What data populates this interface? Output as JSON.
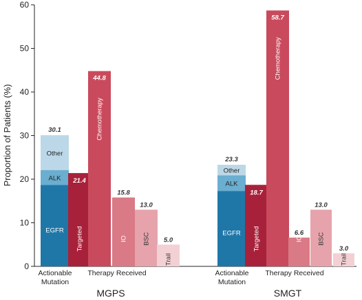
{
  "chart_data": {
    "type": "bar",
    "ylabel": "Proportion of Patients (%)",
    "ylim": [
      0,
      60
    ],
    "yticks": [
      0,
      10,
      20,
      30,
      40,
      50,
      60
    ],
    "grid": false,
    "groups": [
      {
        "name": "MGPS",
        "actionable": {
          "label_line1": "Actionable",
          "label_line2": "Mutation",
          "total": 30.1,
          "total_label": "30.1",
          "segments": [
            {
              "name": "EGFR",
              "value": 18.7,
              "color": "#1f77a8"
            },
            {
              "name": "ALK",
              "value": 3.4,
              "color": "#6aaed0"
            },
            {
              "name": "Other",
              "value": 8.0,
              "color": "#bcd8e8"
            }
          ]
        },
        "therapy_label": "Therapy Received",
        "therapy": [
          {
            "name": "Targeted",
            "value": 21.4,
            "label": "21.4",
            "color": "#a8213a"
          },
          {
            "name": "Chemotherapy",
            "value": 44.8,
            "label": "44.8",
            "color": "#c94a5c"
          },
          {
            "name": "IO",
            "value": 15.8,
            "label": "15.8",
            "color": "#d97a86"
          },
          {
            "name": "BSC",
            "value": 13.0,
            "label": "13.0",
            "color": "#e6a3ab"
          },
          {
            "name": "Trail",
            "value": 5.0,
            "label": "5.0",
            "color": "#f3d0d4"
          }
        ]
      },
      {
        "name": "SMGT",
        "actionable": {
          "label_line1": "Actionable",
          "label_line2": "Mutation",
          "total": 23.3,
          "total_label": "23.3",
          "segments": [
            {
              "name": "EGFR",
              "value": 17.3,
              "color": "#1f77a8"
            },
            {
              "name": "ALK",
              "value": 3.6,
              "color": "#6aaed0"
            },
            {
              "name": "Other",
              "value": 2.4,
              "color": "#bcd8e8"
            }
          ]
        },
        "therapy_label": "Therapy Received",
        "therapy": [
          {
            "name": "Targeted",
            "value": 18.7,
            "label": "18.7",
            "color": "#a8213a"
          },
          {
            "name": "Chemotherapy",
            "value": 58.7,
            "label": "58.7",
            "color": "#c94a5c"
          },
          {
            "name": "IO",
            "value": 6.6,
            "label": "6.6",
            "color": "#d97a86"
          },
          {
            "name": "BSC",
            "value": 13.0,
            "label": "13.0",
            "color": "#e6a3ab"
          },
          {
            "name": "Trail",
            "value": 3.0,
            "label": "3.0",
            "color": "#f3d0d4"
          }
        ]
      }
    ]
  }
}
